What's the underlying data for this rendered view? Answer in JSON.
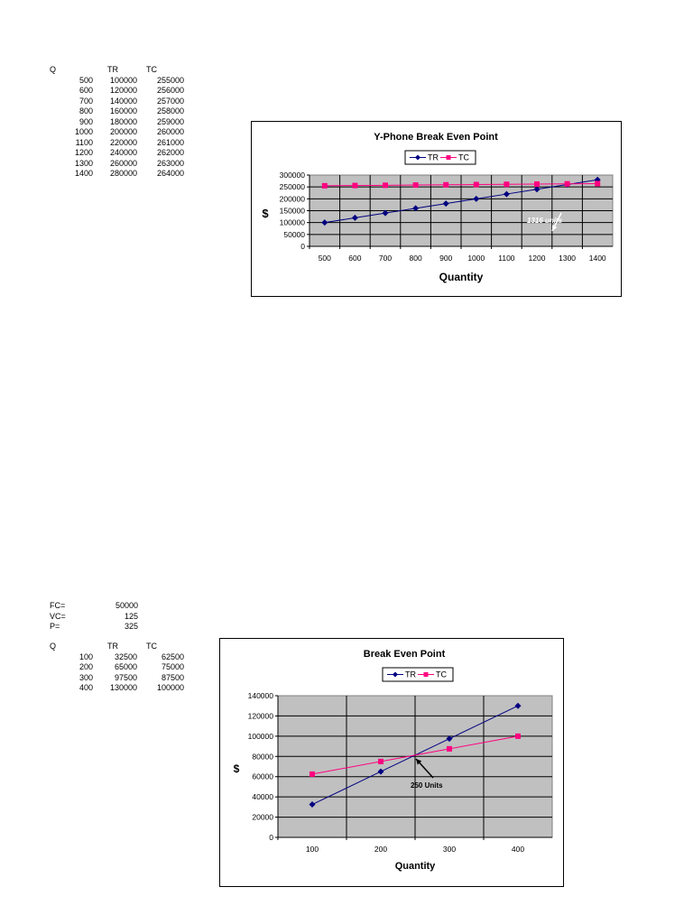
{
  "table1": {
    "headers": [
      "Q",
      "TR",
      "TC"
    ],
    "rows": [
      [
        "500",
        "100000",
        "255000"
      ],
      [
        "600",
        "120000",
        "256000"
      ],
      [
        "700",
        "140000",
        "257000"
      ],
      [
        "800",
        "160000",
        "258000"
      ],
      [
        "900",
        "180000",
        "259000"
      ],
      [
        "1000",
        "200000",
        "260000"
      ],
      [
        "1100",
        "220000",
        "261000"
      ],
      [
        "1200",
        "240000",
        "262000"
      ],
      [
        "1300",
        "260000",
        "263000"
      ],
      [
        "1400",
        "280000",
        "264000"
      ]
    ]
  },
  "params": [
    {
      "label": "FC=",
      "value": "50000"
    },
    {
      "label": "VC=",
      "value": "125"
    },
    {
      "label": "P=",
      "value": "325"
    }
  ],
  "table2": {
    "headers": [
      "Q",
      "TR",
      "TC"
    ],
    "rows": [
      [
        "100",
        "32500",
        "62500"
      ],
      [
        "200",
        "65000",
        "75000"
      ],
      [
        "300",
        "97500",
        "87500"
      ],
      [
        "400",
        "130000",
        "100000"
      ]
    ]
  },
  "colors": {
    "tr": "#000080",
    "tc": "#ff0080",
    "plot_bg": "#c0c0c0"
  },
  "chart_data": [
    {
      "type": "line",
      "title": "Y-Phone Break Even Point",
      "xlabel": "Quantity",
      "ylabel": "$",
      "categories": [
        "500",
        "600",
        "700",
        "800",
        "900",
        "1000",
        "1100",
        "1200",
        "1300",
        "1400"
      ],
      "series": [
        {
          "name": "TR",
          "values": [
            100000,
            120000,
            140000,
            160000,
            180000,
            200000,
            220000,
            240000,
            260000,
            280000
          ]
        },
        {
          "name": "TC",
          "values": [
            255000,
            256000,
            257000,
            258000,
            259000,
            260000,
            261000,
            262000,
            263000,
            264000
          ]
        }
      ],
      "ylim": [
        0,
        300000
      ],
      "yticks": [
        "300000",
        "250000",
        "200000",
        "150000",
        "100000",
        "50000",
        "0"
      ],
      "grid": true,
      "legend": "top-center",
      "annotation": {
        "text": "1316 units",
        "color": "#ffffff"
      }
    },
    {
      "type": "line",
      "title": "Break Even Point",
      "xlabel": "Quantity",
      "ylabel": "$",
      "categories": [
        "100",
        "200",
        "300",
        "400"
      ],
      "series": [
        {
          "name": "TR",
          "values": [
            32500,
            65000,
            97500,
            130000
          ]
        },
        {
          "name": "TC",
          "values": [
            62500,
            75000,
            87500,
            100000
          ]
        }
      ],
      "ylim": [
        0,
        140000
      ],
      "yticks": [
        "140000",
        "120000",
        "100000",
        "80000",
        "60000",
        "40000",
        "20000",
        "0"
      ],
      "grid": true,
      "legend": "top-center",
      "annotation": {
        "text": "250 Units",
        "color": "#000000"
      }
    }
  ]
}
